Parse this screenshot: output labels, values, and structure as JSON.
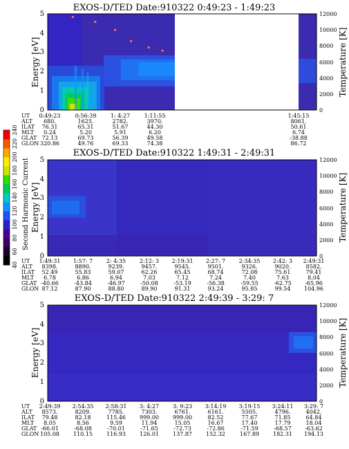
{
  "colorbar": {
    "label": "Second Harmonic Current",
    "ticks": [
      "40",
      "60",
      "80",
      "100",
      "120",
      "140",
      "160",
      "180",
      "200",
      "220",
      "240"
    ],
    "colors": [
      "#000000",
      "#1a0024",
      "#3a0060",
      "#4b0099",
      "#2a1fcc",
      "#1f4fff",
      "#0d96ff",
      "#00cccc",
      "#00cc5a",
      "#33e000",
      "#c8e600",
      "#ffee00",
      "#ffaa00",
      "#ff5500",
      "#ee0000"
    ]
  },
  "panels": [
    {
      "title": "EXOS-D/TED   Date:910322   0:49:23 - 1:49:23",
      "ylabel": "Energy [eV]",
      "y2label": "Temperature [K]",
      "yticks": [
        "0",
        "1",
        "2",
        "3",
        "4",
        "5"
      ],
      "y2ticks": [
        "0",
        "2000",
        "4000",
        "6000",
        "8000",
        "10000",
        "12000"
      ],
      "rowlabels": [
        "UT",
        "ALT",
        "ILAT",
        "MLT",
        "GLAT",
        "GLON"
      ],
      "columns": [
        {
          "UT": "0:49:23",
          "ALT": "680.",
          "ILAT": "76.31",
          "MLT": "0.24",
          "GLAT": "72.13",
          "GLON": "320.86"
        },
        {
          "UT": "0:56:39",
          "ALT": "1625.",
          "ILAT": "65.31",
          "MLT": "5.20",
          "GLAT": "69.73",
          "GLON": "49.76"
        },
        {
          "UT": "1: 4:27",
          "ALT": "2782.",
          "ILAT": "51.67",
          "MLT": "5.91",
          "GLAT": "56.39",
          "GLON": "69.33"
        },
        {
          "UT": "1:11:55",
          "ALT": "3970.",
          "ILAT": "44.30",
          "MLT": "6.20",
          "GLAT": "49.58",
          "GLON": "74.38"
        },
        {
          "UT": "1:45:15",
          "ALT": "8061.",
          "ILAT": "50.61",
          "MLT": "6.74",
          "GLAT": "-38.88",
          "GLON": "86.72"
        }
      ]
    },
    {
      "title": "EXOS-D/TED   Date:910322   1:49:31 - 2:49:31",
      "ylabel": "Energy [eV]",
      "y2label": "Temperature [K]",
      "yticks": [
        "0",
        "1",
        "2",
        "3",
        "4",
        "5"
      ],
      "y2ticks": [
        "0",
        "2000",
        "4000",
        "6000",
        "8000",
        "10000",
        "12000"
      ],
      "rowlabels": [
        "UT",
        "ALT",
        "ILAT",
        "MLT",
        "GLAT",
        "GLON"
      ],
      "columns": [
        {
          "UT": "1:49:31",
          "ALT": "8398.",
          "ILAT": "52.49",
          "MLT": "6.78",
          "GLAT": "-40.66",
          "GLON": "87.12"
        },
        {
          "UT": "1:57: 7",
          "ALT": "8890.",
          "ILAT": "55.83",
          "MLT": "6.86",
          "GLAT": "-43.84",
          "GLON": "87.90"
        },
        {
          "UT": "2: 4:35",
          "ALT": "9239.",
          "ILAT": "59.07",
          "MLT": "6.94",
          "GLAT": "-46.97",
          "GLON": "88.80"
        },
        {
          "UT": "2:12: 3",
          "ALT": "9457.",
          "ILAT": "62.26",
          "MLT": "7.03",
          "GLAT": "-50.08",
          "GLON": "89.90"
        },
        {
          "UT": "2:19:31",
          "ALT": "9545.",
          "ILAT": "65.45",
          "MLT": "7.12",
          "GLAT": "-53.19",
          "GLON": "91.31"
        },
        {
          "UT": "2:27: 7",
          "ALT": "9501.",
          "ILAT": "68.74",
          "MLT": "7.24",
          "GLAT": "-56.38",
          "GLON": "93.24"
        },
        {
          "UT": "2:34:35",
          "ALT": "9326.",
          "ILAT": "72.08",
          "MLT": "7.40",
          "GLAT": "-59.55",
          "GLON": "95.85"
        },
        {
          "UT": "2:42: 3",
          "ALT": "9020.",
          "ILAT": "75.61",
          "MLT": "7.63",
          "GLAT": "-62.75",
          "GLON": "99.54"
        },
        {
          "UT": "2:49:31",
          "ALT": "8582.",
          "ILAT": "79.41",
          "MLT": "8.04",
          "GLAT": "-65.96",
          "GLON": "104.96"
        }
      ]
    },
    {
      "title": "EXOS-D/TED   Date:910322   2:49:39 - 3:29: 7",
      "ylabel": "Energy [eV]",
      "y2label": "Temperature [K]",
      "yticks": [
        "0",
        "1",
        "2",
        "3",
        "4",
        "5"
      ],
      "y2ticks": [
        "0",
        "2000",
        "4000",
        "6000",
        "8000",
        "10000",
        "12000"
      ],
      "rowlabels": [
        "UT",
        "ALT",
        "ILAT",
        "MLT",
        "GLAT",
        "GLON"
      ],
      "columns": [
        {
          "UT": "2:49:39",
          "ALT": "8573.",
          "ILAT": "79.48",
          "MLT": "8.05",
          "GLAT": "-66.01",
          "GLON": "105.08"
        },
        {
          "UT": "2:54:35",
          "ALT": "8209.",
          "ILAT": "82.18",
          "MLT": "8.56",
          "GLAT": "-68.08",
          "GLON": "110.15"
        },
        {
          "UT": "2:58:31",
          "ALT": "7785.",
          "ILAT": "115.46",
          "MLT": "9.59",
          "GLAT": "-70.01",
          "GLON": "116.93"
        },
        {
          "UT": "3: 4:27",
          "ALT": "7303.",
          "ILAT": "999.00",
          "MLT": "11.94",
          "GLAT": "-71.65",
          "GLON": "126.01"
        },
        {
          "UT": "3: 9:23",
          "ALT": "6761.",
          "ILAT": "999.00",
          "MLT": "15.05",
          "GLAT": "-72.73",
          "GLON": "137.87"
        },
        {
          "UT": "3:14:19",
          "ALT": "6161.",
          "ILAT": "82.52",
          "MLT": "16.67",
          "GLAT": "-72.86",
          "GLON": "152.32"
        },
        {
          "UT": "3:19:15",
          "ALT": "5505.",
          "ILAT": "77.67",
          "MLT": "17.40",
          "GLAT": "-71.59",
          "GLON": "167.89"
        },
        {
          "UT": "3:24:11",
          "ALT": "4796.",
          "ILAT": "71.85",
          "MLT": "17.79",
          "GLAT": "-68.57",
          "GLON": "182.31"
        },
        {
          "UT": "3:29: 7",
          "ALT": "4042.",
          "ILAT": "64.84",
          "MLT": "18.04",
          "GLAT": "-63.62",
          "GLON": "194.13"
        }
      ]
    }
  ],
  "chart_data": [
    {
      "type": "heatmap",
      "title": "EXOS-D/TED   Date:910322   0:49:23 - 1:49:23",
      "ylabel": "Energy [eV]",
      "y2label": "Temperature [K]",
      "ylim": [
        0,
        5
      ],
      "y2lim": [
        0,
        12000
      ],
      "xlim": [
        "0:49:23",
        "1:49:23"
      ],
      "data_gap": [
        "1:15:30",
        "1:45:00"
      ],
      "temperature_trace_K": [
        {
          "UT": "0:55:00",
          "T": 11600
        },
        {
          "UT": "1: 0:00",
          "T": 11000
        },
        {
          "UT": "1: 4:27",
          "T": 10000
        },
        {
          "UT": "1: 8:00",
          "T": 8600
        },
        {
          "UT": "1:11:55",
          "T": 7800
        },
        {
          "UT": "1:15:00",
          "T": 7400
        }
      ]
    },
    {
      "type": "heatmap",
      "title": "EXOS-D/TED   Date:910322   1:49:31 - 2:49:31",
      "ylabel": "Energy [eV]",
      "y2label": "Temperature [K]",
      "ylim": [
        0,
        5
      ],
      "y2lim": [
        0,
        12000
      ],
      "xlim": [
        "1:49:31",
        "2:49:31"
      ]
    },
    {
      "type": "heatmap",
      "title": "EXOS-D/TED   Date:910322   2:49:39 - 3:29: 7",
      "ylabel": "Energy [eV]",
      "y2label": "Temperature [K]",
      "ylim": [
        0,
        5
      ],
      "y2lim": [
        0,
        12000
      ],
      "xlim": [
        "2:49:39",
        "3:29: 7"
      ]
    }
  ]
}
